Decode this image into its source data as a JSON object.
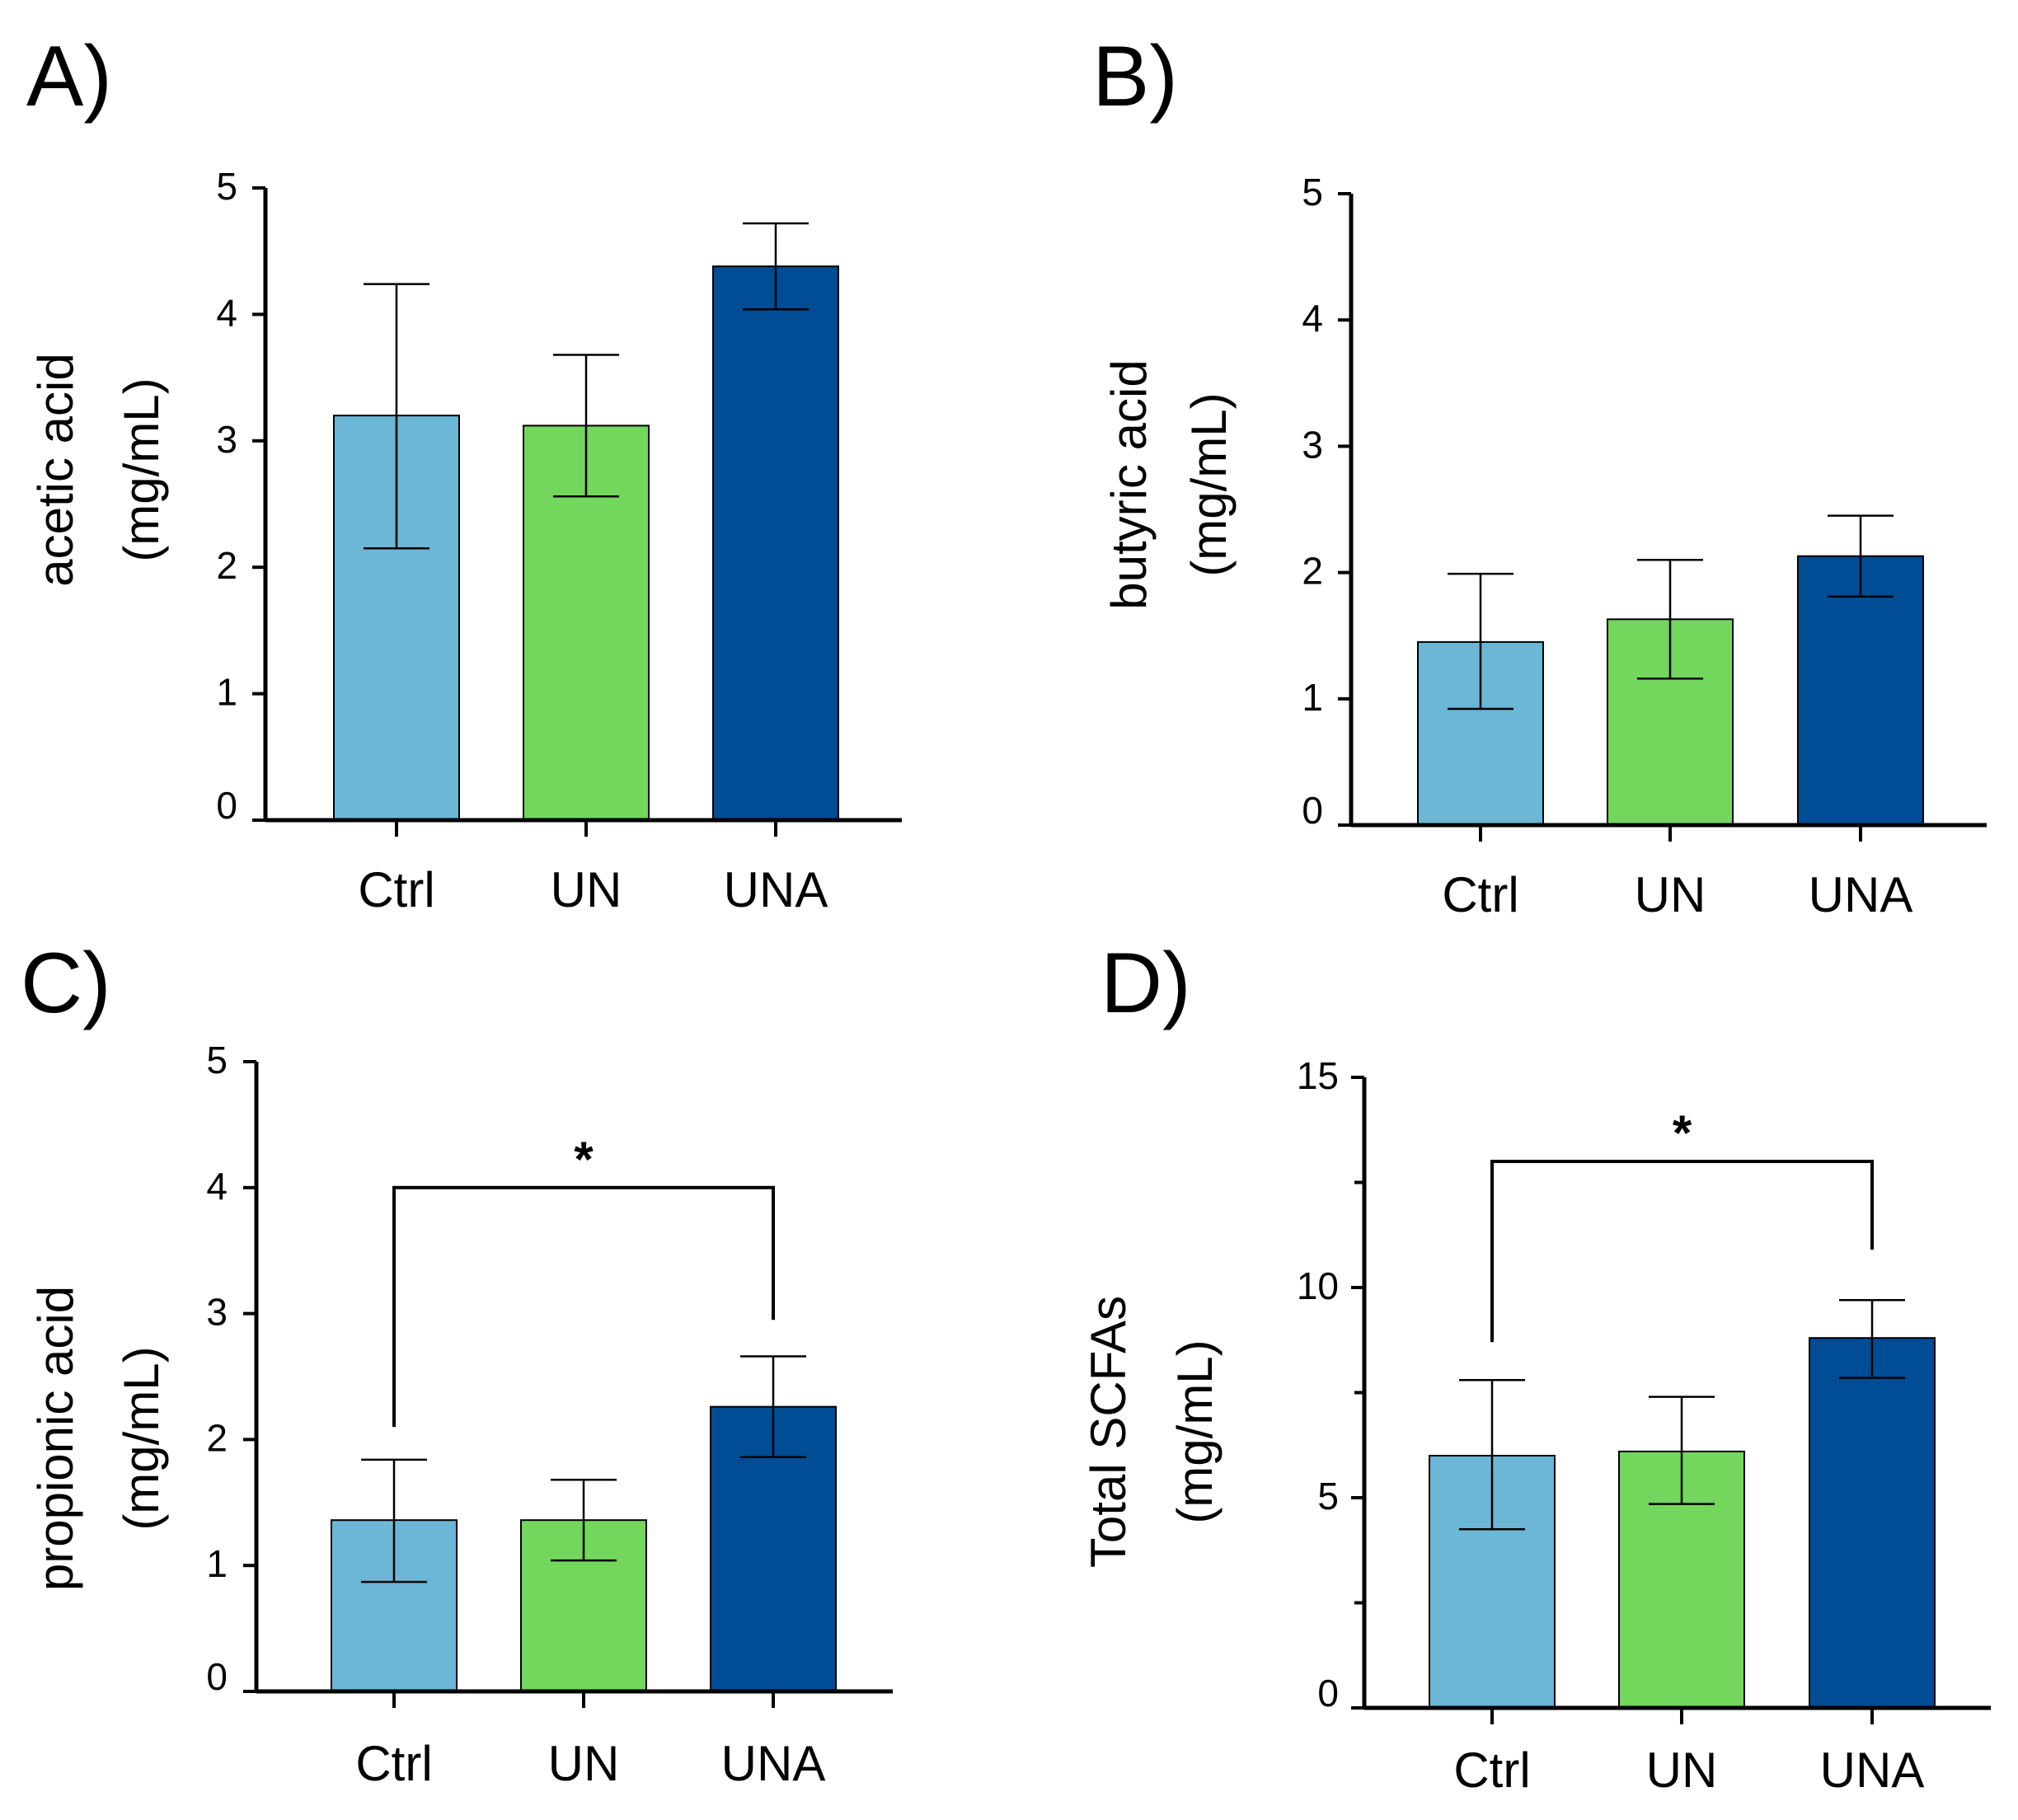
{
  "colors": {
    "Ctrl": "#6cb6d6",
    "UN": "#73d65d",
    "UNA": "#004c95"
  },
  "chart_data": [
    {
      "panel": "A)",
      "type": "bar",
      "categories": [
        "Ctrl",
        "UN",
        "UNA"
      ],
      "values": [
        3.2,
        3.12,
        4.38
      ],
      "errors_upper": [
        4.24,
        3.68,
        4.72
      ],
      "errors_lower": [
        2.15,
        2.56,
        4.04
      ],
      "ylabel_line1": "acetic acid",
      "ylabel_line2": "(mg/mL)",
      "ylim": [
        0,
        5
      ],
      "yticks": [
        0,
        1,
        2,
        3,
        4,
        5
      ],
      "significance": null
    },
    {
      "panel": "B)",
      "type": "bar",
      "categories": [
        "Ctrl",
        "UN",
        "UNA"
      ],
      "values": [
        1.45,
        1.63,
        2.13
      ],
      "errors_upper": [
        1.99,
        2.1,
        2.45
      ],
      "errors_lower": [
        0.92,
        1.16,
        1.81
      ],
      "ylabel_line1": "butyric acid",
      "ylabel_line2": "(mg/mL)",
      "ylim": [
        0,
        5
      ],
      "yticks": [
        0,
        1,
        2,
        3,
        4,
        5
      ],
      "significance": null
    },
    {
      "panel": "C)",
      "type": "bar",
      "categories": [
        "Ctrl",
        "UN",
        "UNA"
      ],
      "values": [
        1.36,
        1.36,
        2.26
      ],
      "errors_upper": [
        1.84,
        1.68,
        2.66
      ],
      "errors_lower": [
        0.87,
        1.04,
        1.86
      ],
      "ylabel_line1": "propionic acid",
      "ylabel_line2": "(mg/mL)",
      "ylim": [
        0,
        5
      ],
      "yticks": [
        0,
        1,
        2,
        3,
        4,
        5
      ],
      "significance": {
        "from": 0,
        "to": 2,
        "label": "*",
        "level": 4.0,
        "from_drop": 2.1,
        "to_drop": 2.95
      }
    },
    {
      "panel": "D)",
      "type": "bar",
      "categories": [
        "Ctrl",
        "UN",
        "UNA"
      ],
      "values": [
        6.0,
        6.1,
        8.8
      ],
      "errors_upper": [
        7.8,
        7.4,
        9.7
      ],
      "errors_lower": [
        4.25,
        4.85,
        7.85
      ],
      "ylabel_line1": "Total SCFAs",
      "ylabel_line2": "(mg/mL)",
      "ylim": [
        0,
        15
      ],
      "yticks": [
        0,
        5,
        10,
        15
      ],
      "minor_ticks": [
        2.5,
        7.5,
        12.5
      ],
      "significance": {
        "from": 0,
        "to": 2,
        "label": "*",
        "level": 13.0,
        "from_drop": 8.7,
        "to_drop": 10.9
      }
    }
  ]
}
